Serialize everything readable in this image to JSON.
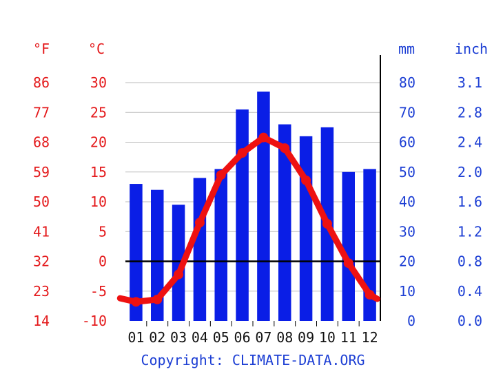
{
  "colors": {
    "bar": "#0a1ee6",
    "temperature_line": "#ee1111",
    "temperature_axis_text": "#e41a1c",
    "precipitation_axis_text": "#1d3fd4",
    "grid": "#bbbbbb",
    "zero_line": "#000000"
  },
  "copyright": "Copyright: CLIMATE-DATA.ORG",
  "chart_data": {
    "type": "bar+line",
    "categories": [
      "01",
      "02",
      "03",
      "04",
      "05",
      "06",
      "07",
      "08",
      "09",
      "10",
      "11",
      "12"
    ],
    "precipitation_mm": [
      46,
      44,
      39,
      48,
      51,
      71,
      77,
      66,
      62,
      65,
      50,
      51
    ],
    "temperature_c": [
      -6.8,
      -6.4,
      -2.2,
      6.5,
      14.5,
      18.2,
      20.8,
      19.0,
      13.6,
      6.3,
      -0.3,
      -5.6
    ],
    "axes": {
      "fahrenheit": {
        "unit": "°F",
        "ticks": [
          "86",
          "77",
          "68",
          "59",
          "50",
          "41",
          "32",
          "23",
          "14"
        ]
      },
      "celsius": {
        "unit": "°C",
        "ticks": [
          "30",
          "25",
          "20",
          "15",
          "10",
          "5",
          "0",
          "-5",
          "-10"
        ],
        "ylim": [
          -10,
          30
        ]
      },
      "mm": {
        "unit": "mm",
        "ticks": [
          "80",
          "70",
          "60",
          "50",
          "40",
          "30",
          "20",
          "10",
          "0"
        ],
        "ylim": [
          0,
          80
        ]
      },
      "inch": {
        "unit": "inch",
        "ticks": [
          "3.1",
          "2.8",
          "2.4",
          "2.0",
          "1.6",
          "1.2",
          "0.8",
          "0.4",
          "0.0"
        ]
      }
    },
    "grid": true,
    "zero_line": true
  }
}
